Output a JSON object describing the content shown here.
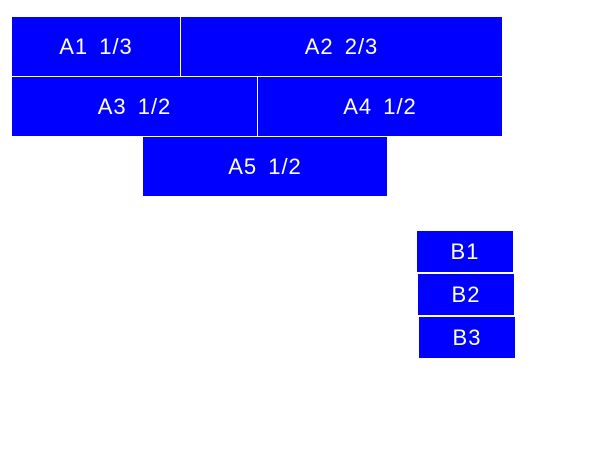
{
  "colors": {
    "box_fill": "#0000ff",
    "text": "#ffffff",
    "background": "#ffffff"
  },
  "group_a": [
    {
      "label": "A1 1/3"
    },
    {
      "label": "A2 2/3"
    },
    {
      "label": "A3 1/2"
    },
    {
      "label": "A4 1/2"
    },
    {
      "label": "A5 1/2"
    }
  ],
  "group_b": [
    {
      "label": "B1"
    },
    {
      "label": "B2"
    },
    {
      "label": "B3"
    }
  ]
}
